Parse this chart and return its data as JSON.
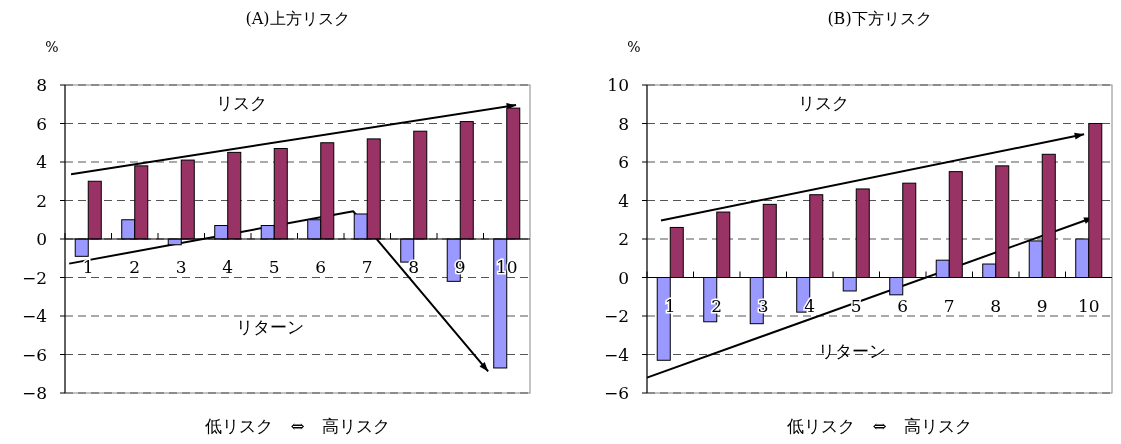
{
  "chart_data": [
    {
      "type": "bar",
      "title": "(A)上方リスク",
      "xlabel": "低リスク　⇔　高リスク",
      "ylabel": "%",
      "categories": [
        "1",
        "2",
        "3",
        "4",
        "5",
        "6",
        "7",
        "8",
        "9",
        "10"
      ],
      "series": [
        {
          "color": "#9999ff",
          "values": [
            -0.9,
            1.0,
            -0.3,
            0.7,
            0.7,
            1.0,
            1.3,
            -1.2,
            -2.2,
            -6.7
          ]
        },
        {
          "color": "#993366",
          "values": [
            3.0,
            3.8,
            4.1,
            4.5,
            4.7,
            5.0,
            5.2,
            5.6,
            6.1,
            6.8
          ]
        }
      ],
      "annotations": [
        "リターン",
        "リスク"
      ],
      "ylim": [
        -8,
        8
      ],
      "yticks": [
        -8,
        -6,
        -4,
        -2,
        0,
        2,
        4,
        6,
        8
      ],
      "grid": "y"
    },
    {
      "type": "bar",
      "title": "(B)下方リスク",
      "xlabel": "低リスク　⇔　高リスク",
      "ylabel": "%",
      "categories": [
        "1",
        "2",
        "3",
        "4",
        "5",
        "6",
        "7",
        "8",
        "9",
        "10"
      ],
      "series": [
        {
          "color": "#9999ff",
          "values": [
            -4.3,
            -2.3,
            -2.4,
            -1.8,
            -0.7,
            -0.9,
            0.9,
            0.7,
            1.9,
            2.0
          ]
        },
        {
          "color": "#993366",
          "values": [
            2.6,
            3.4,
            3.8,
            4.3,
            4.6,
            4.9,
            5.5,
            5.8,
            6.4,
            8.0
          ]
        }
      ],
      "annotations": [
        "リターン",
        "リスク"
      ],
      "ylim": [
        -6,
        10
      ],
      "yticks": [
        -6,
        -4,
        -2,
        0,
        2,
        4,
        6,
        8,
        10
      ],
      "grid": "y"
    }
  ]
}
